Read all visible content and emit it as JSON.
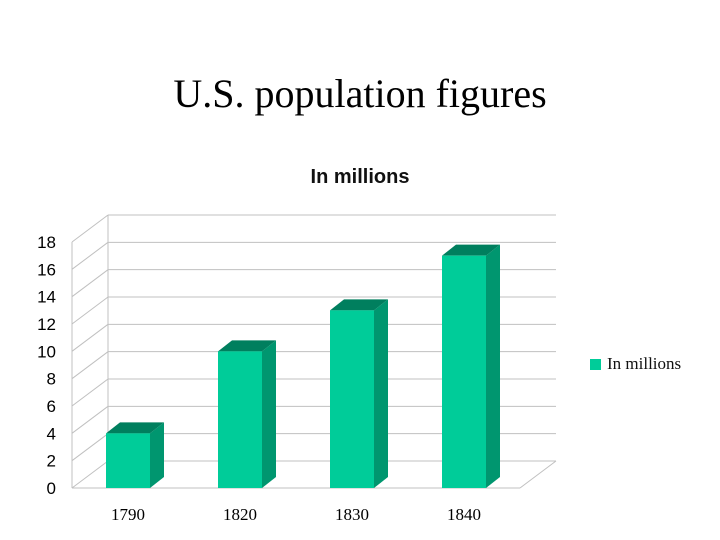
{
  "slide": {
    "title": "U.S. population figures"
  },
  "colors": {
    "bar_front": "#00CC99",
    "bar_side": "#00966F",
    "bar_top": "#007F5E",
    "grid": "#C0C0C0",
    "axis_text": "#000000"
  },
  "chart_data": {
    "type": "bar",
    "title": "In millions",
    "categories": [
      "1790",
      "1820",
      "1830",
      "1840"
    ],
    "series": [
      {
        "name": "In millions",
        "values": [
          4,
          10,
          13,
          17
        ]
      }
    ],
    "ylim": [
      0,
      18
    ],
    "yticks": [
      "0",
      "2",
      "4",
      "6",
      "8",
      "10",
      "12",
      "14",
      "16",
      "18"
    ],
    "grid": true,
    "legend": "right",
    "xlabel": "",
    "ylabel": ""
  }
}
